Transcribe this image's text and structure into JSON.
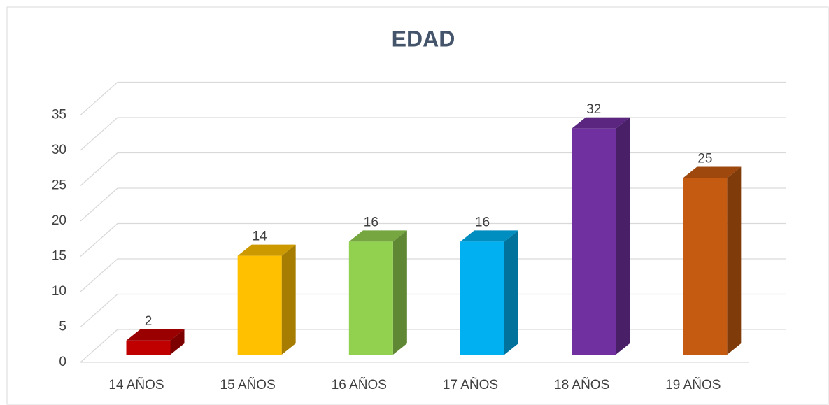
{
  "chart_data": {
    "type": "bar3d",
    "title": "EDAD",
    "categories": [
      "14 AÑOS",
      "15 AÑOS",
      "16 AÑOS",
      "17 AÑOS",
      "18 AÑOS",
      "19 AÑOS"
    ],
    "values": [
      2,
      14,
      16,
      16,
      32,
      25
    ],
    "colors": [
      "#c00000",
      "#ffc000",
      "#92d050",
      "#00b0f0",
      "#7030a0",
      "#c55a11"
    ],
    "ylim": [
      0,
      35
    ],
    "yticks": [
      0,
      5,
      10,
      15,
      20,
      25,
      30,
      35
    ],
    "grid": true
  }
}
